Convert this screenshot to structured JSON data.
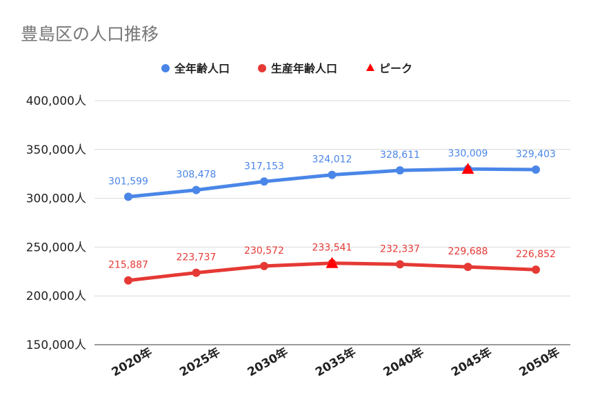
{
  "title": "豊島区の人口推移",
  "chart_data": {
    "type": "line",
    "title": "豊島区の人口推移",
    "categories": [
      "2020年",
      "2025年",
      "2030年",
      "2035年",
      "2040年",
      "2045年",
      "2050年"
    ],
    "ylim": [
      150000,
      400000
    ],
    "yticks": [
      150000,
      200000,
      250000,
      300000,
      350000,
      400000
    ],
    "ytick_labels": [
      "150,000人",
      "200,000人",
      "250,000人",
      "300,000人",
      "350,000人",
      "400,000人"
    ],
    "grid": true,
    "legend_position": "top",
    "series": [
      {
        "name": "全年齢人口",
        "color": "#4a86e8",
        "values": [
          301599,
          308478,
          317153,
          324012,
          328611,
          330009,
          329403
        ],
        "labels": [
          "301,599",
          "308,478",
          "317,153",
          "324,012",
          "328,611",
          "330,009",
          "329,403"
        ]
      },
      {
        "name": "生産年齢人口",
        "color": "#e53935",
        "values": [
          215887,
          223737,
          230572,
          233541,
          232337,
          229688,
          226852
        ],
        "labels": [
          "215,887",
          "223,737",
          "230,572",
          "233,541",
          "232,337",
          "229,688",
          "226,852"
        ]
      }
    ],
    "peak": {
      "name": "ピーク",
      "color": "#ff0000",
      "marker": "triangle",
      "points": [
        {
          "category": "2045年",
          "value": 330009
        },
        {
          "category": "2035年",
          "value": 233541
        }
      ]
    }
  }
}
